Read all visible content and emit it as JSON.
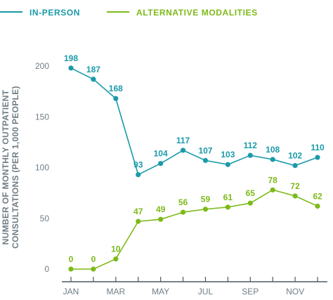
{
  "chart_data": {
    "type": "line",
    "categories": [
      "Jan",
      "Feb",
      "Mar",
      "Apr",
      "May",
      "Jun",
      "Jul",
      "Aug",
      "Sep",
      "Oct",
      "Nov",
      "Dec"
    ],
    "x_tick_labels": [
      "JAN",
      "",
      "MAR",
      "",
      "MAY",
      "",
      "JUL",
      "",
      "SEP",
      "",
      "NOV",
      ""
    ],
    "y_ticks": [
      0,
      50,
      100,
      150,
      200
    ],
    "ylim": [
      0,
      210
    ],
    "ylabel_line1": "NUMBER OF MONTHLY OUTPATIENT",
    "ylabel_line2": "CONSULTATIONS (PER 1,000 PEOPLE)",
    "legend_position": "top-left",
    "grid": false,
    "series": [
      {
        "name": "IN-PERSON",
        "color": "#1a9aaa",
        "values": [
          198,
          187,
          168,
          93,
          104,
          117,
          107,
          103,
          112,
          108,
          102,
          110
        ]
      },
      {
        "name": "ALTERNATIVE MODALITIES",
        "color": "#7dba19",
        "values": [
          0,
          0,
          10,
          47,
          49,
          56,
          59,
          61,
          65,
          78,
          72,
          62
        ]
      }
    ],
    "axis_color": "#4a5a66"
  }
}
